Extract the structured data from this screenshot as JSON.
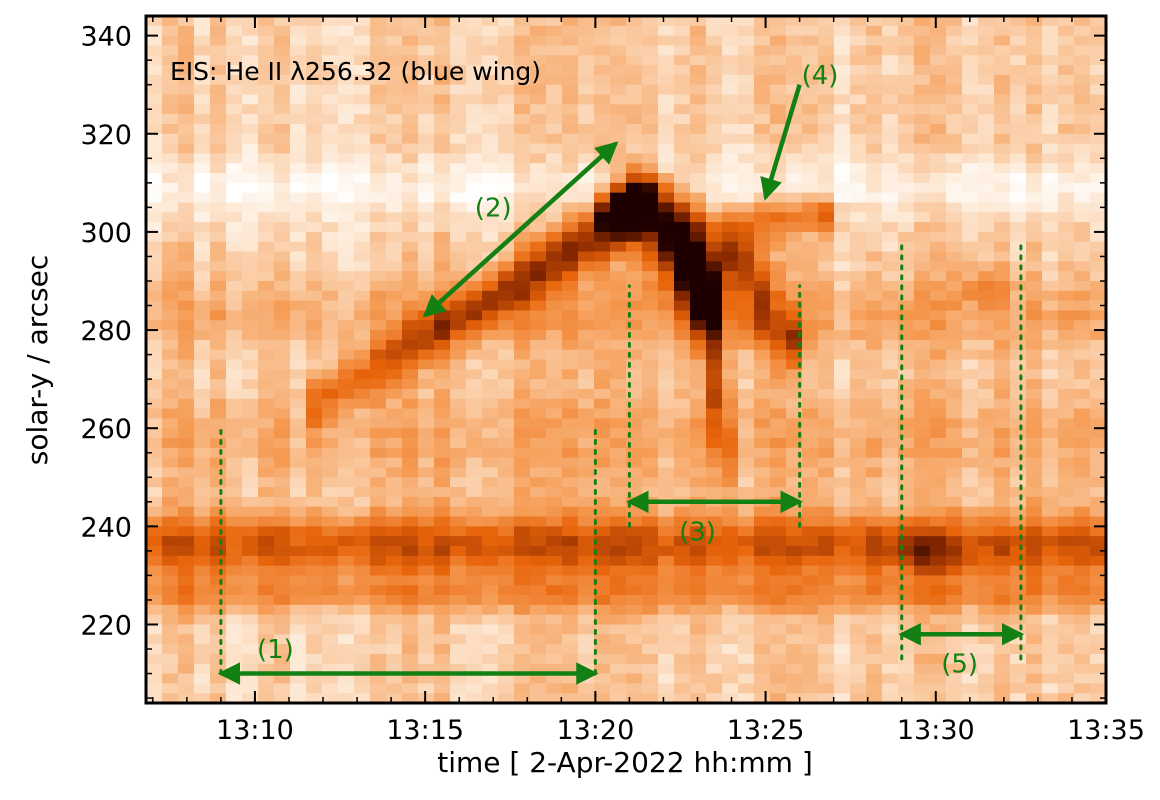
{
  "chart_data": {
    "type": "heatmap",
    "title": "EIS: He II λ256.32 (blue wing)",
    "xlabel": "time [ 2-Apr-2022 hh:mm ]",
    "ylabel": "solar-y / arcsec",
    "colormap": "white-orange-black (intensity increasing toward dark)",
    "xlim_minutes": [
      6.8,
      35.0
    ],
    "ylim": [
      204,
      344
    ],
    "x_ticks": [
      {
        "value": 10,
        "label": "13:10"
      },
      {
        "value": 15,
        "label": "13:15"
      },
      {
        "value": 20,
        "label": "13:20"
      },
      {
        "value": 25,
        "label": "13:25"
      },
      {
        "value": 30,
        "label": "13:30"
      },
      {
        "value": 35,
        "label": "13:35"
      }
    ],
    "y_ticks": [
      {
        "value": 220,
        "label": "220"
      },
      {
        "value": 240,
        "label": "240"
      },
      {
        "value": 260,
        "label": "260"
      },
      {
        "value": 280,
        "label": "280"
      },
      {
        "value": 300,
        "label": "300"
      },
      {
        "value": 320,
        "label": "320"
      },
      {
        "value": 340,
        "label": "340"
      }
    ],
    "background_bands": [
      {
        "y": 236,
        "sigma": 4.5,
        "amp": 0.42
      },
      {
        "y": 226,
        "sigma": 2.5,
        "amp": 0.2
      },
      {
        "y": 283,
        "sigma": 5,
        "amp": 0.12
      },
      {
        "y": 258,
        "sigma": 7,
        "amp": 0.1
      }
    ],
    "bright_features": [
      {
        "t": 20.8,
        "y": 304,
        "st": 0.45,
        "sy": 2.5,
        "amp": 1.0
      },
      {
        "t": 21.4,
        "y": 307,
        "st": 0.5,
        "sy": 3.5,
        "amp": 0.9
      },
      {
        "t": 22.2,
        "y": 300,
        "st": 0.6,
        "sy": 5,
        "amp": 0.75
      },
      {
        "t": 22.8,
        "y": 292,
        "st": 0.5,
        "sy": 6,
        "amp": 0.75
      },
      {
        "t": 23.3,
        "y": 285,
        "st": 0.35,
        "sy": 6,
        "amp": 0.65
      },
      {
        "t": 23.6,
        "y": 270,
        "st": 0.2,
        "sy": 9,
        "amp": 0.5
      },
      {
        "t": 23.8,
        "y": 255,
        "st": 0.18,
        "sy": 6,
        "amp": 0.35
      },
      {
        "t": 24.1,
        "y": 296,
        "st": 0.4,
        "sy": 5,
        "amp": 0.55
      },
      {
        "t": 24.8,
        "y": 286,
        "st": 0.35,
        "sy": 6,
        "amp": 0.45
      },
      {
        "t": 25.7,
        "y": 278,
        "st": 0.3,
        "sy": 4,
        "amp": 0.5
      },
      {
        "t": 25.4,
        "y": 303,
        "st": 0.9,
        "sy": 2.5,
        "amp": 0.3
      },
      {
        "t": 26.7,
        "y": 304,
        "st": 0.3,
        "sy": 2.5,
        "amp": 0.35
      },
      {
        "t": 31.4,
        "y": 289,
        "st": 0.5,
        "sy": 3,
        "amp": 0.2
      },
      {
        "t": 29.8,
        "y": 234,
        "st": 0.8,
        "sy": 3,
        "amp": 0.2
      }
    ],
    "rising_ridge": {
      "t_start": 12.0,
      "y_start": 266,
      "t_end": 21.0,
      "y_end": 303,
      "width_y": 4,
      "amp": 0.6
    },
    "annotations": [
      {
        "label": "(1)",
        "type": "double-arrow",
        "t1": 9.0,
        "t2": 20.0,
        "y": 210,
        "label_t": 10.6,
        "label_y": 215
      },
      {
        "label": "(2)",
        "type": "double-arrow",
        "t1": 15.0,
        "y1": 283,
        "t2": 20.6,
        "y2": 318,
        "label_t": 17.0,
        "label_y": 305
      },
      {
        "label": "(3)",
        "type": "double-arrow",
        "t1": 21.0,
        "t2": 26.0,
        "y": 245,
        "label_t": 23.0,
        "label_y": 239
      },
      {
        "label": "(4)",
        "type": "arrow",
        "t1": 26.0,
        "y1": 330,
        "t2": 25.0,
        "y2": 307,
        "label_t": 26.6,
        "label_y": 332
      },
      {
        "label": "(5)",
        "type": "double-arrow",
        "t1": 29.0,
        "t2": 32.5,
        "y": 218,
        "label_t": 30.7,
        "label_y": 212
      }
    ],
    "dotted_lines": [
      {
        "t": 9.0,
        "y1": 210,
        "y2": 260
      },
      {
        "t": 20.0,
        "y1": 210,
        "y2": 260
      },
      {
        "t": 21.0,
        "y1": 240,
        "y2": 289
      },
      {
        "t": 26.0,
        "y1": 240,
        "y2": 289
      },
      {
        "t": 29.0,
        "y1": 213,
        "y2": 298
      },
      {
        "t": 32.5,
        "y1": 213,
        "y2": 298
      }
    ],
    "annotation_color": "#128012",
    "colors": {
      "white": "#ffffff",
      "light": "#fde6d0",
      "mid": "#f59a52",
      "orange": "#e8640a",
      "dark": "#8c2a00",
      "black": "#1e0000"
    }
  }
}
